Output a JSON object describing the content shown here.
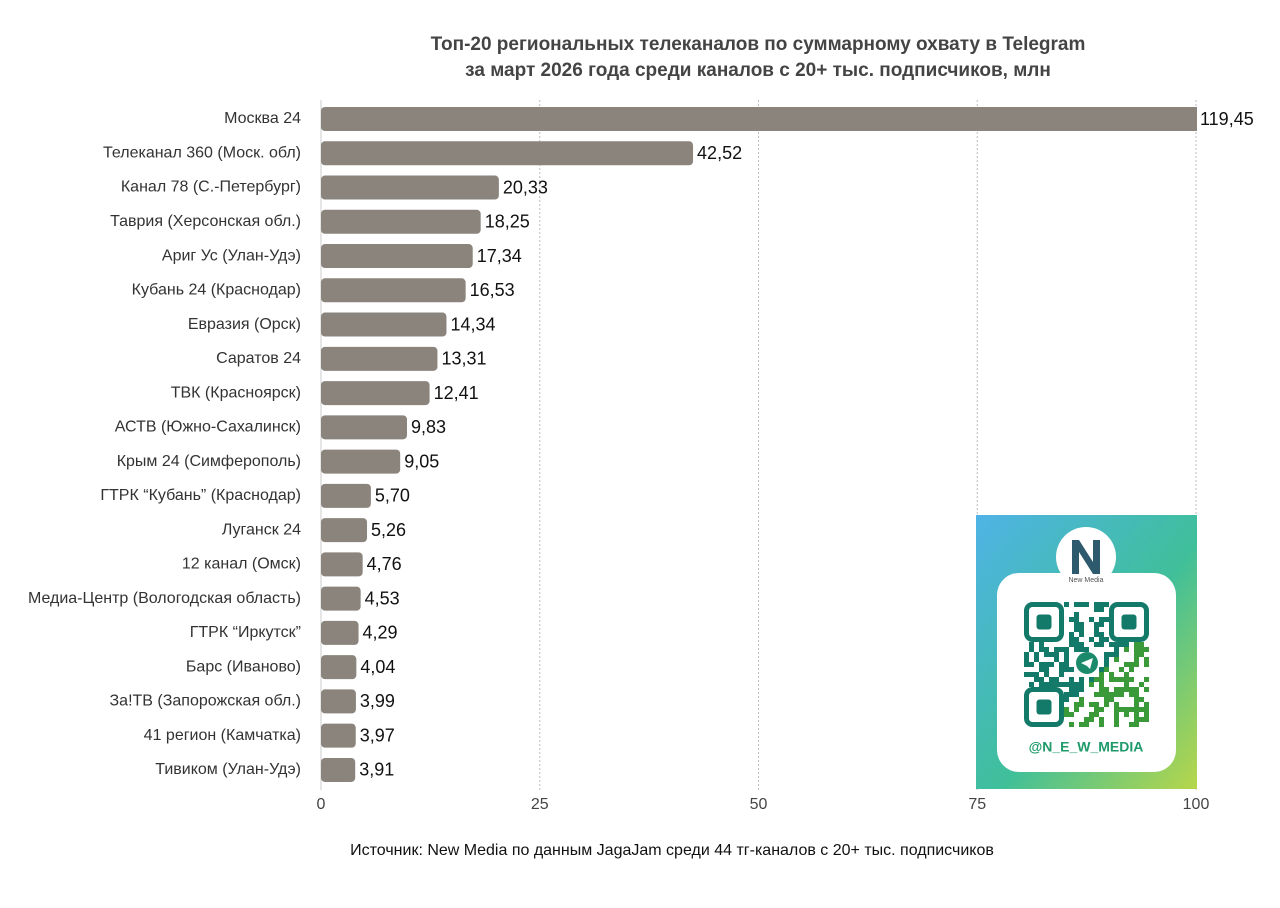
{
  "chart_data": {
    "type": "hbar",
    "title": "Топ-20 региональных телеканалов по суммарному охвату в Telegram",
    "subtitle": "за март 2026 года среди каналов с 20+ тыс. подписчиков, млн",
    "categories": [
      "Москва 24",
      "Телеканал 360 (Моск. обл)",
      "Канал 78 (С.-Петербург)",
      "Таврия (Херсонская обл.)",
      "Ариг Ус (Улан-Удэ)",
      "Кубань 24 (Краснодар)",
      "Евразия (Орск)",
      "Саратов 24",
      "ТВК (Красноярск)",
      "АСТВ (Южно-Сахалинск)",
      "Крым 24 (Симферополь)",
      "ГТРК “Кубань” (Краснодар)",
      "Луганск 24",
      "12 канал (Омск)",
      "Медиа-Центр (Вологодская область)",
      "ГТРК “Иркутск”",
      "Барс (Иваново)",
      "За!ТВ (Запорожская обл.)",
      "41 регион (Камчатка)",
      "Тивиком (Улан-Удэ)"
    ],
    "values": [
      119.45,
      42.52,
      20.33,
      18.25,
      17.34,
      16.53,
      14.34,
      13.31,
      12.41,
      9.83,
      9.05,
      5.7,
      5.26,
      4.76,
      4.53,
      4.29,
      4.04,
      3.99,
      3.97,
      3.91
    ],
    "value_labels": [
      "119,45",
      "42,52",
      "20,33",
      "18,25",
      "17,34",
      "16,53",
      "14,34",
      "13,31",
      "12,41",
      "9,83",
      "9,05",
      "5,70",
      "5,26",
      "4,76",
      "4,53",
      "4,29",
      "4,04",
      "3,99",
      "3,97",
      "3,91"
    ],
    "color": "#8a847d",
    "xlim": [
      0,
      100
    ],
    "xticks": [
      0,
      25,
      50,
      75,
      100
    ],
    "grid": true,
    "source": "Источник: New Media по данным JagaJam среди 44 тг-каналов с 20+ тыс. подписчиков",
    "annotations": [
      "@N_E_W_MEDIA",
      "New Media"
    ]
  }
}
